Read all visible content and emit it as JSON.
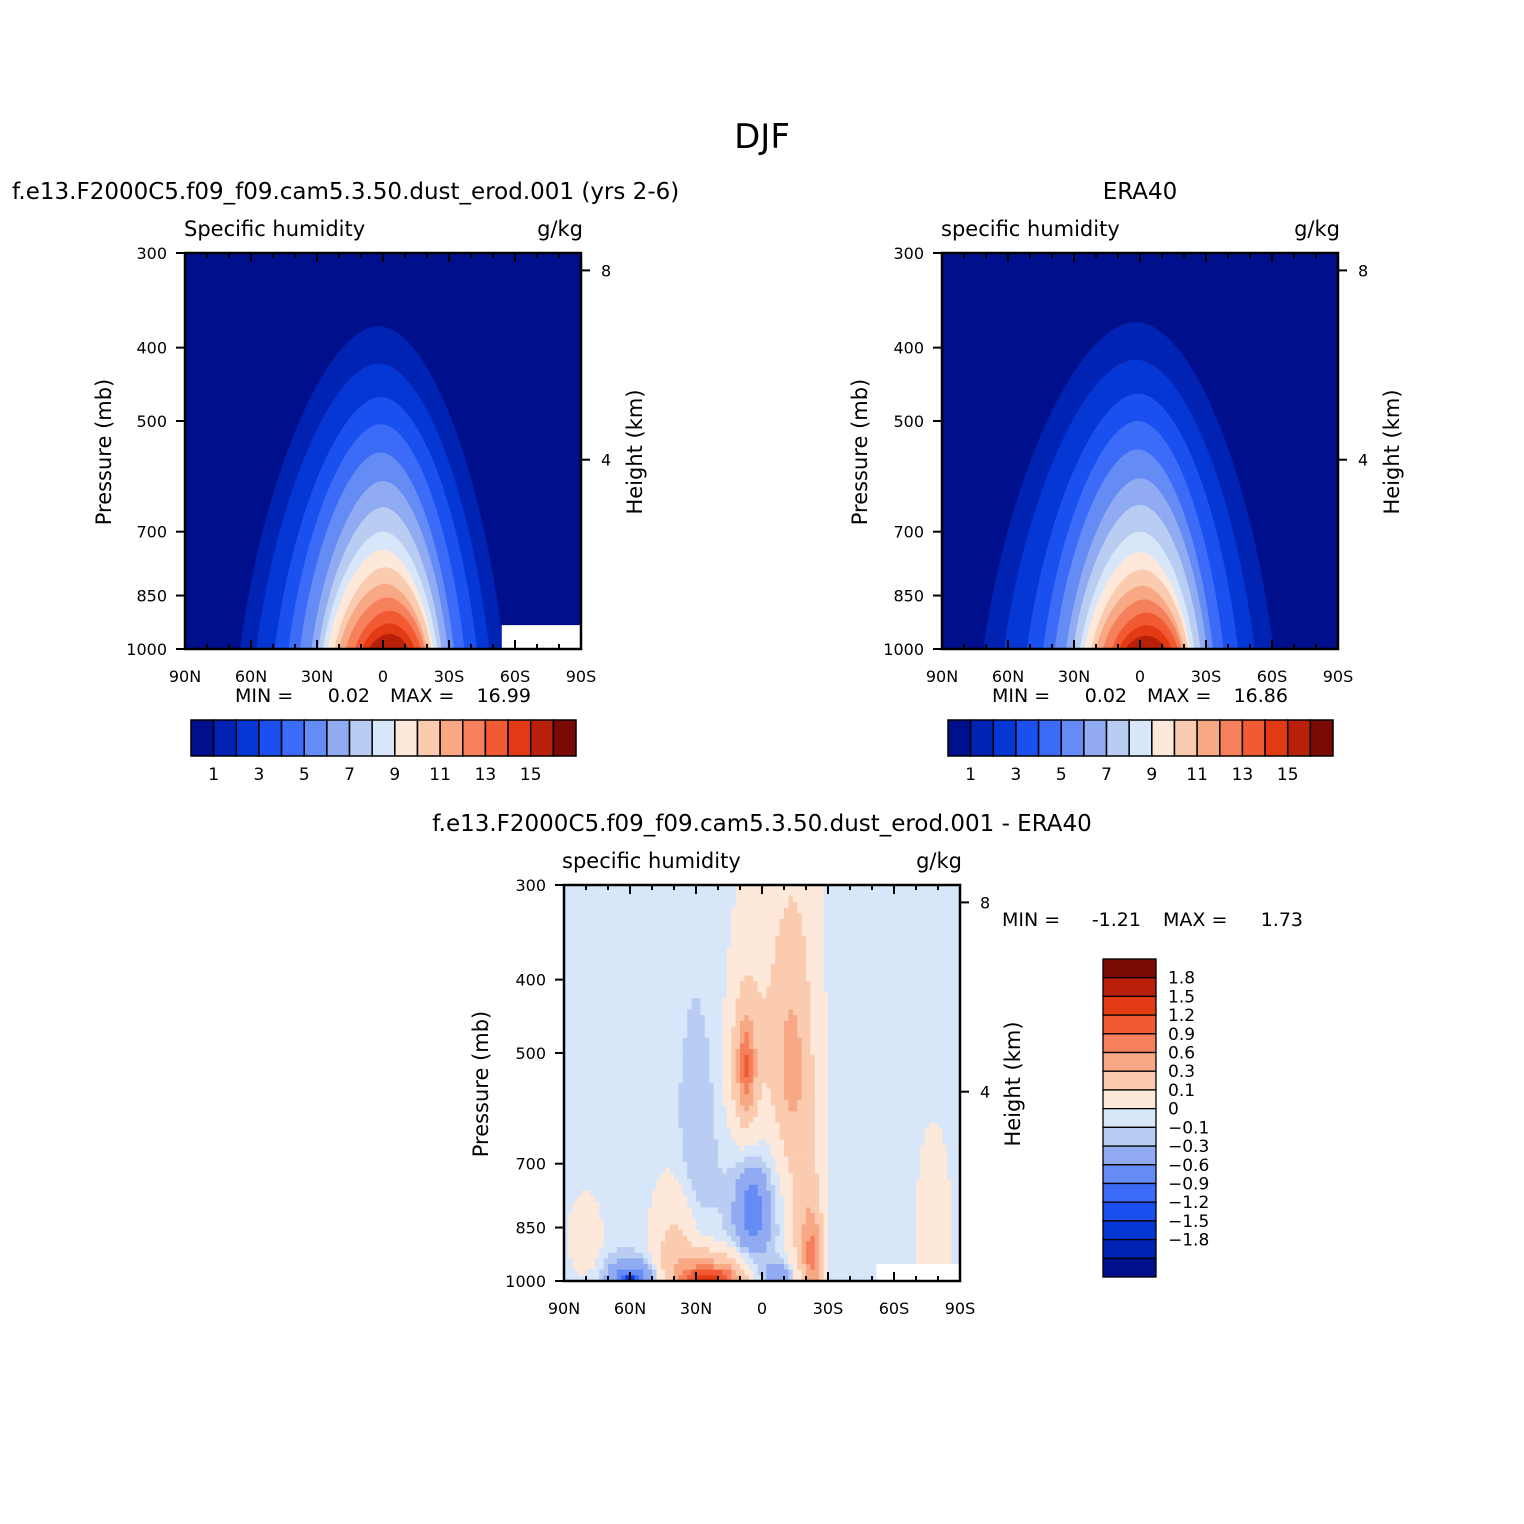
{
  "figure_title": "DJF",
  "chart_data": [
    {
      "type": "heatmap",
      "subtype": "filled-contour",
      "title": "f.e13.F2000C5.f09_f09.cam5.3.50.dust_erod.001 (yrs 2-6)",
      "left_label": "Specific humidity",
      "right_label": "g/kg",
      "ylabel": "Pressure (mb)",
      "ylabel_right": "Height (km)",
      "x_ticks": [
        "90N",
        "60N",
        "30N",
        "0",
        "30S",
        "60S",
        "90S"
      ],
      "y_ticks": [
        "300",
        "400",
        "500",
        "700",
        "850",
        "1000"
      ],
      "y_right_ticks": [
        "8",
        "4"
      ],
      "xlim": [
        90,
        -90
      ],
      "ylim": [
        1000,
        300
      ],
      "y_scale": "log",
      "stats": {
        "min_label": "MIN =",
        "min_value": "0.02",
        "max_label": "MAX =",
        "max_value": "16.99"
      },
      "colorbar": {
        "orientation": "horizontal",
        "tick_labels": [
          "1",
          "3",
          "5",
          "7",
          "9",
          "11",
          "13",
          "15"
        ],
        "levels": [
          0,
          1,
          2,
          3,
          4,
          5,
          6,
          7,
          8,
          9,
          10,
          11,
          12,
          13,
          14,
          15,
          16
        ]
      },
      "bands": [
        {
          "level": 1,
          "peak_lat": 2,
          "top_p": 375,
          "half_width_deg": 60
        },
        {
          "level": 2,
          "peak_lat": 2,
          "top_p": 420,
          "half_width_deg": 53
        },
        {
          "level": 3,
          "peak_lat": 1,
          "top_p": 465,
          "half_width_deg": 46
        },
        {
          "level": 4,
          "peak_lat": 1,
          "top_p": 505,
          "half_width_deg": 40
        },
        {
          "level": 5,
          "peak_lat": 1,
          "top_p": 550,
          "half_width_deg": 35
        },
        {
          "level": 6,
          "peak_lat": 0,
          "top_p": 600,
          "half_width_deg": 31
        },
        {
          "level": 7,
          "peak_lat": 0,
          "top_p": 650,
          "half_width_deg": 28
        },
        {
          "level": 8,
          "peak_lat": 0,
          "top_p": 700,
          "half_width_deg": 26
        },
        {
          "level": 9,
          "peak_lat": 0,
          "top_p": 740,
          "half_width_deg": 24
        },
        {
          "level": 10,
          "peak_lat": -1,
          "top_p": 780,
          "half_width_deg": 22
        },
        {
          "level": 11,
          "peak_lat": -1,
          "top_p": 820,
          "half_width_deg": 20
        },
        {
          "level": 12,
          "peak_lat": -2,
          "top_p": 855,
          "half_width_deg": 18
        },
        {
          "level": 13,
          "peak_lat": -3,
          "top_p": 890,
          "half_width_deg": 15
        },
        {
          "level": 14,
          "peak_lat": -3,
          "top_p": 925,
          "half_width_deg": 12
        },
        {
          "level": 15,
          "peak_lat": -3,
          "top_p": 955,
          "half_width_deg": 9
        }
      ],
      "missing_region": {
        "lat_from": -54,
        "lat_to": -90,
        "p_from": 930,
        "p_to": 1000
      }
    },
    {
      "type": "heatmap",
      "subtype": "filled-contour",
      "title": "ERA40",
      "left_label": "specific humidity",
      "right_label": "g/kg",
      "ylabel": "Pressure (mb)",
      "ylabel_right": "Height (km)",
      "x_ticks": [
        "90N",
        "60N",
        "30N",
        "0",
        "30S",
        "60S",
        "90S"
      ],
      "y_ticks": [
        "300",
        "400",
        "500",
        "700",
        "850",
        "1000"
      ],
      "y_right_ticks": [
        "8",
        "4"
      ],
      "xlim": [
        90,
        -90
      ],
      "ylim": [
        1000,
        300
      ],
      "y_scale": "log",
      "stats": {
        "min_label": "MIN =",
        "min_value": "0.02",
        "max_label": "MAX =",
        "max_value": "16.86"
      },
      "colorbar": {
        "orientation": "horizontal",
        "tick_labels": [
          "1",
          "3",
          "5",
          "7",
          "9",
          "11",
          "13",
          "15"
        ],
        "levels": [
          0,
          1,
          2,
          3,
          4,
          5,
          6,
          7,
          8,
          9,
          10,
          11,
          12,
          13,
          14,
          15,
          16
        ]
      },
      "bands": [
        {
          "level": 1,
          "peak_lat": 2,
          "top_p": 370,
          "half_width_deg": 66
        },
        {
          "level": 2,
          "peak_lat": 2,
          "top_p": 415,
          "half_width_deg": 57
        },
        {
          "level": 3,
          "peak_lat": 1,
          "top_p": 460,
          "half_width_deg": 48
        },
        {
          "level": 4,
          "peak_lat": 1,
          "top_p": 500,
          "half_width_deg": 41
        },
        {
          "level": 5,
          "peak_lat": 1,
          "top_p": 545,
          "half_width_deg": 36
        },
        {
          "level": 6,
          "peak_lat": 0,
          "top_p": 595,
          "half_width_deg": 32
        },
        {
          "level": 7,
          "peak_lat": 0,
          "top_p": 645,
          "half_width_deg": 29
        },
        {
          "level": 8,
          "peak_lat": 0,
          "top_p": 700,
          "half_width_deg": 26
        },
        {
          "level": 9,
          "peak_lat": 0,
          "top_p": 745,
          "half_width_deg": 24
        },
        {
          "level": 10,
          "peak_lat": -1,
          "top_p": 785,
          "half_width_deg": 22
        },
        {
          "level": 11,
          "peak_lat": -1,
          "top_p": 825,
          "half_width_deg": 20
        },
        {
          "level": 12,
          "peak_lat": -2,
          "top_p": 860,
          "half_width_deg": 18
        },
        {
          "level": 13,
          "peak_lat": -3,
          "top_p": 895,
          "half_width_deg": 15
        },
        {
          "level": 14,
          "peak_lat": -3,
          "top_p": 930,
          "half_width_deg": 12
        },
        {
          "level": 15,
          "peak_lat": -3,
          "top_p": 960,
          "half_width_deg": 9
        }
      ]
    },
    {
      "type": "heatmap",
      "subtype": "filled-contour",
      "title": "f.e13.F2000C5.f09_f09.cam5.3.50.dust_erod.001 - ERA40",
      "left_label": "specific humidity",
      "right_label": "g/kg",
      "ylabel": "Pressure (mb)",
      "ylabel_right": "Height (km)",
      "x_ticks": [
        "90N",
        "60N",
        "30N",
        "0",
        "30S",
        "60S",
        "90S"
      ],
      "y_ticks": [
        "300",
        "400",
        "500",
        "700",
        "850",
        "1000"
      ],
      "y_right_ticks": [
        "8",
        "4"
      ],
      "xlim": [
        90,
        -90
      ],
      "ylim": [
        1000,
        300
      ],
      "y_scale": "log",
      "stats": {
        "min_label": "MIN =",
        "min_value": "-1.21",
        "max_label": "MAX =",
        "max_value": "1.73"
      },
      "colorbar": {
        "orientation": "vertical",
        "tick_labels": [
          "1.8",
          "1.5",
          "1.2",
          "0.9",
          "0.6",
          "0.3",
          "0.1",
          "0",
          "-0.1",
          "-0.3",
          "-0.6",
          "-0.9",
          "-1.2",
          "-1.5",
          "-1.8"
        ]
      },
      "background_value": 0.05,
      "blobs": [
        {
          "lat": 63,
          "p": 420,
          "dlat": 6,
          "dp": 500,
          "value": -0.05
        },
        {
          "lat": -3,
          "p": 480,
          "dlat": 9,
          "dp": 220,
          "value": 0.2
        },
        {
          "lat": -17,
          "p": 460,
          "dlat": 7,
          "dp": 240,
          "value": 0.2
        },
        {
          "lat": 8,
          "p": 530,
          "dlat": 5,
          "dp": 90,
          "value": 0.45
        },
        {
          "lat": -13,
          "p": 520,
          "dlat": 5,
          "dp": 90,
          "value": 0.4
        },
        {
          "lat": 7,
          "p": 520,
          "dlat": 2.5,
          "dp": 45,
          "value": 0.7
        },
        {
          "lat": -38,
          "p": 640,
          "dlat": 4,
          "dp": 280,
          "value": -0.05
        },
        {
          "lat": -78,
          "p": 420,
          "dlat": 9,
          "dp": 200,
          "value": -0.05
        },
        {
          "lat": 30,
          "p": 720,
          "dlat": 6,
          "dp": 200,
          "value": -0.15
        },
        {
          "lat": 3,
          "p": 790,
          "dlat": 9,
          "dp": 160,
          "value": -0.2
        },
        {
          "lat": 4,
          "p": 810,
          "dlat": 5,
          "dp": 70,
          "value": -0.35
        },
        {
          "lat": -20,
          "p": 850,
          "dlat": 5,
          "dp": 180,
          "value": 0.35
        },
        {
          "lat": -23,
          "p": 930,
          "dlat": 3,
          "dp": 80,
          "value": 0.7
        },
        {
          "lat": 38,
          "p": 920,
          "dlat": 8,
          "dp": 120,
          "value": 0.35
        },
        {
          "lat": 24,
          "p": 975,
          "dlat": 12,
          "dp": 45,
          "value": 0.7
        },
        {
          "lat": 24,
          "p": 990,
          "dlat": 8,
          "dp": 18,
          "value": 1.05
        },
        {
          "lat": 80,
          "p": 880,
          "dlat": 5,
          "dp": 70,
          "value": 0.2
        },
        {
          "lat": -78,
          "p": 830,
          "dlat": 5,
          "dp": 160,
          "value": 0.2
        },
        {
          "lat": 58,
          "p": 985,
          "dlat": 9,
          "dp": 35,
          "value": -0.45
        },
        {
          "lat": 60,
          "p": 995,
          "dlat": 2.5,
          "dp": 12,
          "value": -1.0
        },
        {
          "lat": -8,
          "p": 980,
          "dlat": 6,
          "dp": 30,
          "value": -0.25
        }
      ],
      "missing_region": {
        "lat_from": -52,
        "lat_to": -90,
        "p_from": 950,
        "p_to": 1000
      }
    }
  ],
  "colors": {
    "palette": [
      "#000f8c",
      "#0123b4",
      "#0437d4",
      "#1a50ef",
      "#3c6cf7",
      "#658bf4",
      "#90abf2",
      "#b9cdf3",
      "#d8e6fa",
      "#fde8da",
      "#fbcbb0",
      "#f8a885",
      "#f6805b",
      "#f15a33",
      "#e23b14",
      "#b8200b",
      "#7c0a04"
    ],
    "diff_palette": [
      "#7c0a04",
      "#b8200b",
      "#e23b14",
      "#f15a33",
      "#f6805b",
      "#f8a885",
      "#fbcbb0",
      "#fde8da",
      "#d8e6fa",
      "#b9cdf3",
      "#90abf2",
      "#658bf4",
      "#3c6cf7",
      "#1a50ef",
      "#0437d4",
      "#0123b4",
      "#000f8c"
    ]
  }
}
